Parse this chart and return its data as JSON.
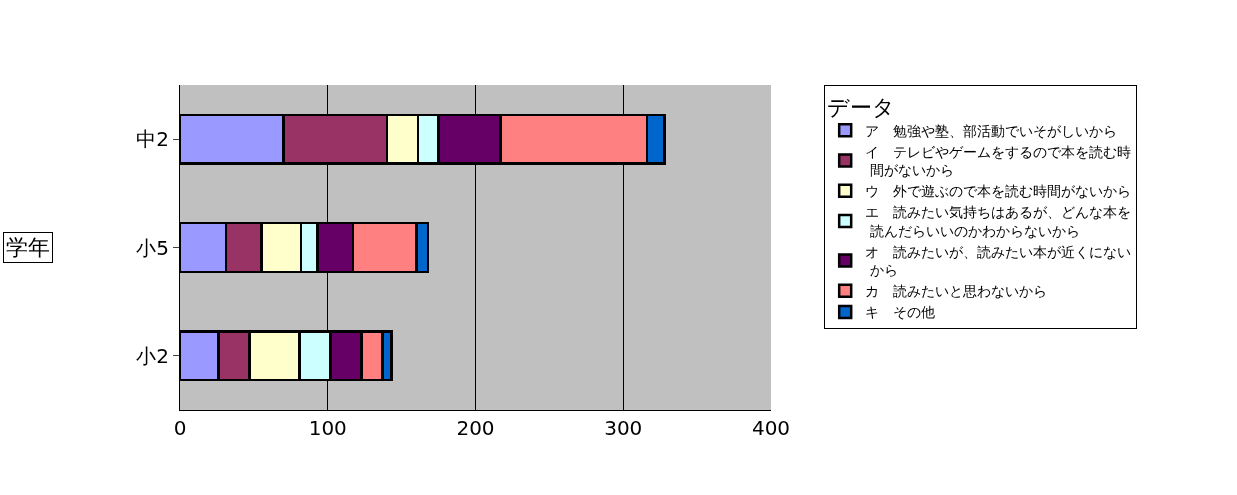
{
  "chart_data": {
    "type": "bar",
    "orientation": "horizontal",
    "stacked": true,
    "ylabel": "学年",
    "legend_title": "データ",
    "categories": [
      "中2",
      "小5",
      "小2"
    ],
    "series": [
      {
        "name": "ア　勉強や塾、部活動でいそがしいから",
        "color": "#9999ff",
        "values": [
          70,
          31,
          26
        ]
      },
      {
        "name": "イ　テレビやゲームをするので本を読む時間がないから",
        "color": "#993366",
        "values": [
          70,
          24,
          21
        ]
      },
      {
        "name": "ウ　外で遊ぶので本を読む時間がないから",
        "color": "#ffffcc",
        "values": [
          21,
          27,
          34
        ]
      },
      {
        "name": "エ　読みたい気持ちはあるが、どんな本を読んだらいいのかわからないから",
        "color": "#ccffff",
        "values": [
          14,
          11,
          21
        ]
      },
      {
        "name": "オ　読みたいが、読みたい本が近くにないから",
        "color": "#660066",
        "values": [
          42,
          24,
          21
        ]
      },
      {
        "name": "カ　読みたいと思わないから",
        "color": "#ff8080",
        "values": [
          99,
          43,
          14
        ]
      },
      {
        "name": "キ　その他",
        "color": "#0066cc",
        "values": [
          12,
          8,
          6
        ]
      }
    ],
    "xlim": [
      0,
      400
    ],
    "xticks": [
      0,
      100,
      200,
      300,
      400
    ],
    "grid": "x",
    "legend": "right"
  }
}
